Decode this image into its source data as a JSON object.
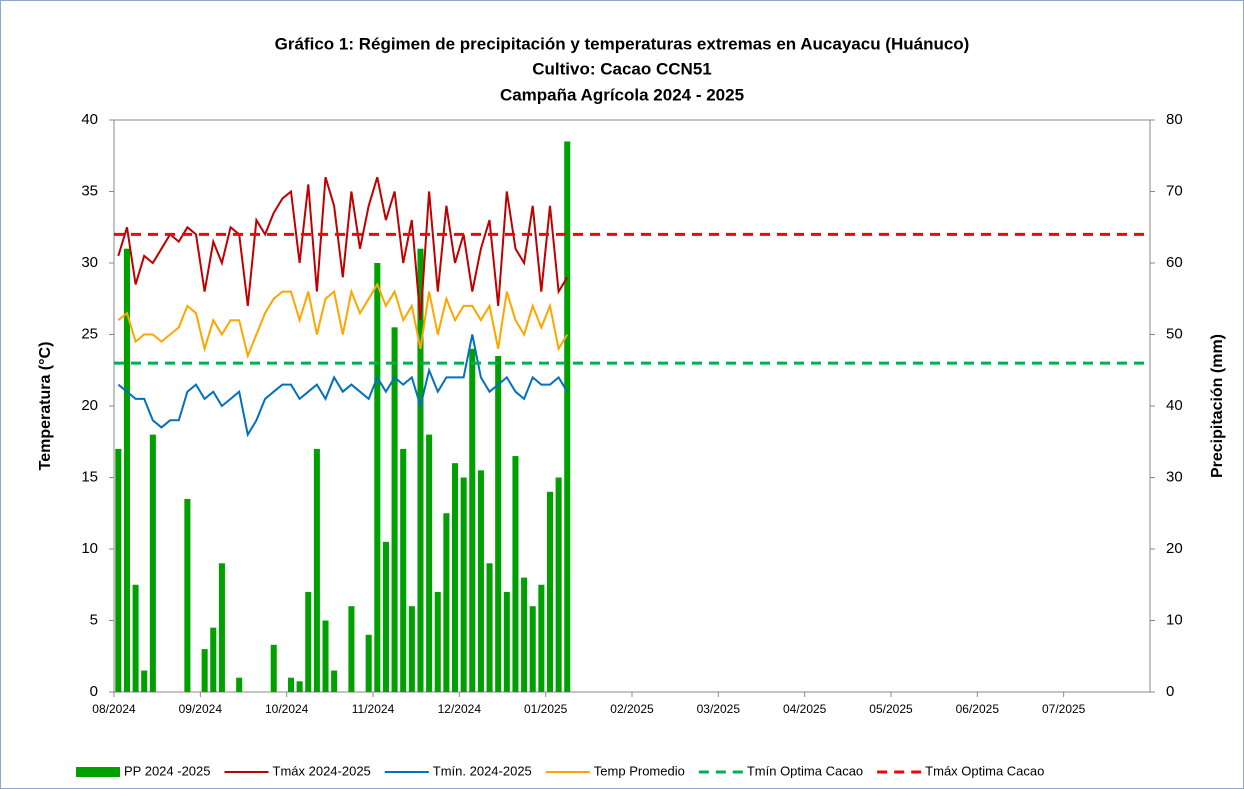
{
  "chart_data": {
    "type": "bar_line",
    "title_lines": [
      "Gráfico 1: Régimen de precipitación y temperaturas extremas en Aucayacu (Huánuco)",
      "Cultivo: Cacao CCN51",
      "Campaña Agrícola 2024 - 2025"
    ],
    "y_label": "Temperatura (°C)",
    "y2_label": "Precipitación (mm)",
    "categories": [
      "08/2024",
      null,
      null,
      null,
      null,
      null,
      null,
      null,
      null,
      null,
      "09/2024",
      null,
      null,
      null,
      null,
      null,
      null,
      null,
      null,
      null,
      "10/2024",
      null,
      null,
      null,
      null,
      null,
      null,
      null,
      null,
      null,
      "11/2024",
      null,
      null,
      null,
      null,
      null,
      null,
      null,
      null,
      null,
      "12/2024",
      null,
      null,
      null,
      null,
      null,
      null,
      null,
      null,
      null,
      "01/2025",
      null,
      null,
      null,
      null,
      null,
      null,
      null,
      null,
      null,
      "02/2025",
      null,
      null,
      null,
      null,
      null,
      null,
      null,
      null,
      null,
      "03/2025",
      null,
      null,
      null,
      null,
      null,
      null,
      null,
      null,
      null,
      "04/2025",
      null,
      null,
      null,
      null,
      null,
      null,
      null,
      null,
      null,
      "05/2025",
      null,
      null,
      null,
      null,
      null,
      null,
      null,
      null,
      null,
      "06/2025",
      null,
      null,
      null,
      null,
      null,
      null,
      null,
      null,
      null,
      "07/2025",
      null,
      null,
      null,
      null,
      null,
      null,
      null,
      null,
      null
    ],
    "series": [
      {
        "name": "PP 2024 -2025",
        "kind": "bar",
        "axis": "y2",
        "color": "#00a000",
        "values": [
          34,
          62,
          15,
          3,
          36,
          0,
          0,
          0,
          27,
          0,
          6,
          9,
          18,
          0,
          2,
          0,
          0,
          0,
          6.6,
          0,
          2,
          1.5,
          14,
          34,
          10,
          3,
          0,
          12,
          0,
          8,
          60,
          21,
          51,
          34,
          12,
          62,
          36,
          14,
          25,
          32,
          30,
          48,
          31,
          18,
          47,
          14,
          33,
          16,
          12,
          15,
          28,
          30,
          77,
          null,
          null,
          null,
          null,
          null,
          null,
          null,
          null,
          null,
          null,
          null,
          null,
          null,
          null,
          null,
          null,
          null,
          null,
          null,
          null,
          null,
          null,
          null,
          null,
          null,
          null,
          null,
          null,
          null,
          null,
          null,
          null,
          null,
          null,
          null,
          null,
          null,
          null,
          null,
          null,
          null,
          null,
          null,
          null,
          null,
          null,
          null,
          null,
          null,
          null,
          null,
          null,
          null,
          null,
          null,
          null,
          null,
          null,
          null,
          null,
          null,
          null,
          null,
          null,
          null,
          null,
          null
        ]
      },
      {
        "name": "Tmáx 2024-2025",
        "kind": "line",
        "color": "#c00000",
        "values": [
          30.5,
          32.5,
          28.5,
          30.5,
          30,
          31,
          32,
          31.5,
          32.5,
          32,
          28,
          31.5,
          30,
          32.5,
          32,
          27,
          33,
          32,
          33.5,
          34.5,
          35,
          30,
          35.5,
          28,
          36,
          34,
          29,
          35,
          31,
          34,
          36,
          33,
          35,
          30,
          33,
          26,
          35,
          28,
          34,
          30,
          32,
          28,
          31,
          33,
          27,
          35,
          31,
          30,
          34,
          28,
          34,
          28,
          29,
          null,
          null,
          null,
          null,
          null,
          null,
          null,
          null,
          null,
          null,
          null,
          null,
          null,
          null,
          null,
          null,
          null,
          null,
          null,
          null,
          null,
          null,
          null,
          null,
          null,
          null,
          null,
          null,
          null,
          null,
          null,
          null,
          null,
          null,
          null,
          null,
          null,
          null,
          null,
          null,
          null,
          null,
          null,
          null,
          null,
          null,
          null,
          null,
          null,
          null,
          null,
          null,
          null,
          null,
          null,
          null,
          null,
          null,
          null,
          null,
          null,
          null,
          null,
          null,
          null,
          null,
          null
        ]
      },
      {
        "name": "Tmín. 2024-2025",
        "kind": "line",
        "color": "#0070c0",
        "values": [
          21.5,
          21,
          20.5,
          20.5,
          19,
          18.5,
          19,
          19,
          21,
          21.5,
          20.5,
          21,
          20,
          20.5,
          21,
          18,
          19,
          20.5,
          21,
          21.5,
          21.5,
          20.5,
          21,
          21.5,
          20.5,
          22,
          21,
          21.5,
          21,
          20.5,
          22,
          21,
          22,
          21.5,
          22,
          20,
          22.5,
          21,
          22,
          22,
          22,
          25,
          22,
          21,
          21.5,
          22,
          21,
          20.5,
          22,
          21.5,
          21.5,
          22,
          21,
          null,
          null,
          null,
          null,
          null,
          null,
          null,
          null,
          null,
          null,
          null,
          null,
          null,
          null,
          null,
          null,
          null,
          null,
          null,
          null,
          null,
          null,
          null,
          null,
          null,
          null,
          null,
          null,
          null,
          null,
          null,
          null,
          null,
          null,
          null,
          null,
          null,
          null,
          null,
          null,
          null,
          null,
          null,
          null,
          null,
          null,
          null,
          null,
          null,
          null,
          null,
          null,
          null,
          null,
          null,
          null,
          null,
          null,
          null,
          null,
          null,
          null,
          null,
          null,
          null,
          null,
          null
        ]
      },
      {
        "name": "Temp Promedio",
        "kind": "line",
        "color": "#ffa500",
        "values": [
          26,
          26.5,
          24.5,
          25,
          25,
          24.5,
          25,
          25.5,
          27,
          26.5,
          24,
          26,
          25,
          26,
          26,
          23.5,
          25,
          26.5,
          27.5,
          28,
          28,
          26,
          28,
          25,
          27.5,
          28,
          25,
          28,
          26.5,
          27.5,
          28.5,
          27,
          28,
          26,
          27,
          24,
          28,
          25,
          27.5,
          26,
          27,
          27,
          26,
          27,
          24,
          28,
          26,
          25,
          27,
          25.5,
          27,
          24,
          25,
          null,
          null,
          null,
          null,
          null,
          null,
          null,
          null,
          null,
          null,
          null,
          null,
          null,
          null,
          null,
          null,
          null,
          null,
          null,
          null,
          null,
          null,
          null,
          null,
          null,
          null,
          null,
          null,
          null,
          null,
          null,
          null,
          null,
          null,
          null,
          null,
          null,
          null,
          null,
          null,
          null,
          null,
          null,
          null,
          null,
          null,
          null,
          null,
          null,
          null,
          null,
          null,
          null,
          null,
          null,
          null,
          null,
          null,
          null,
          null,
          null,
          null,
          null,
          null,
          null,
          null,
          null
        ]
      }
    ],
    "reference_lines": [
      {
        "name": "Tmín Optima Cacao",
        "value": 23,
        "color": "#00b050"
      },
      {
        "name": "Tmáx Optima Cacao",
        "value": 32,
        "color": "#ff0000"
      }
    ],
    "ylim": [
      0,
      40
    ],
    "yticks": [
      0,
      5,
      10,
      15,
      20,
      25,
      30,
      35,
      40
    ],
    "y2lim": [
      0,
      80
    ],
    "y2ticks": [
      0,
      10,
      20,
      30,
      40,
      50,
      60,
      70,
      80
    ],
    "legend": "bottom"
  }
}
